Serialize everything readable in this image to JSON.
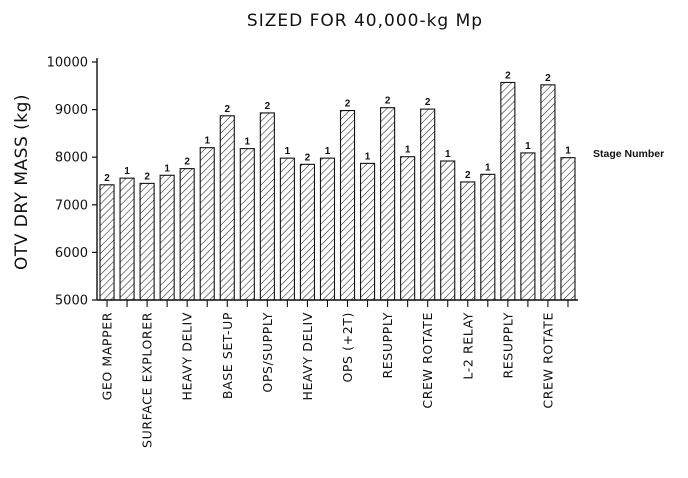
{
  "chart_data": {
    "type": "bar",
    "title": "SIZED FOR 40,000-kg Mp",
    "ylabel": "OTV DRY MASS (kg)",
    "ylim": [
      5000,
      10000
    ],
    "yticks": [
      "5000",
      "6000",
      "7000",
      "8000",
      "9000",
      "10000"
    ],
    "annotation": "Stage Number",
    "categories": [
      "GEO MAPPER",
      "",
      "SURFACE EXPLORER",
      "",
      "HEAVY DELIV",
      "",
      "BASE SET-UP",
      "",
      "OPS/SUPPLY",
      "",
      "HEAVY DELIV",
      "",
      "OPS (+2T)",
      "",
      "RESUPPLY",
      "",
      "CREW ROTATE",
      "",
      "L-2 RELAY",
      "",
      "RESUPPLY",
      "",
      "CREW ROTATE",
      ""
    ],
    "values": [
      7420,
      7560,
      7450,
      7620,
      7760,
      8200,
      8870,
      8180,
      8930,
      7980,
      7850,
      7980,
      8980,
      7870,
      9040,
      8010,
      9010,
      7920,
      7480,
      7640,
      9570,
      8090,
      9520,
      7990
    ],
    "stage_numbers": [
      "2",
      "1",
      "2",
      "1",
      "2",
      "1",
      "2",
      "1",
      "2",
      "1",
      "2",
      "1",
      "2",
      "1",
      "2",
      "1",
      "2",
      "1",
      "2",
      "1",
      "2",
      "1",
      "2",
      "1"
    ],
    "grid": false,
    "pattern": "diagonal-hatch"
  }
}
